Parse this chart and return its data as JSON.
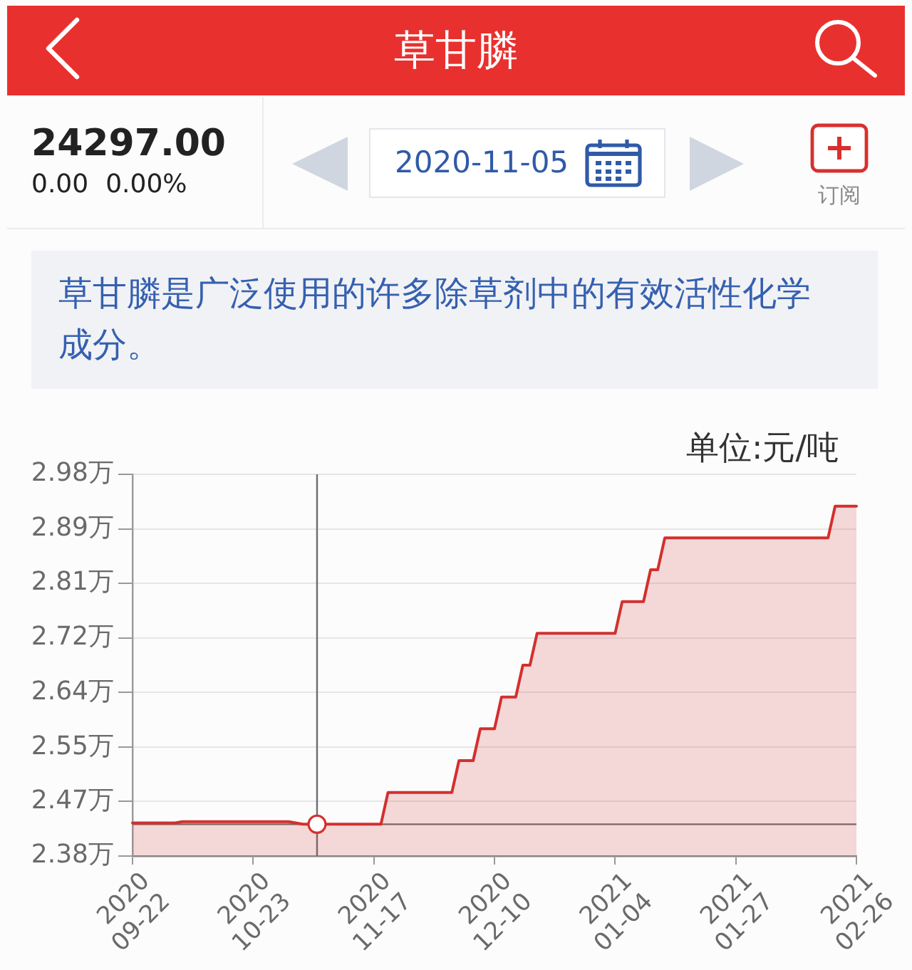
{
  "chart_data": {
    "type": "area",
    "title": "草甘膦",
    "subtitle": "草甘膦是广泛使用的许多除草剂中的有效活性化学成分。",
    "ylabel": "单位:元/吨",
    "annotations": [
      "24297.00",
      "0.00",
      "0.00%",
      "订阅",
      "2020-11-05"
    ],
    "categories": [
      "2020\n09-22",
      null,
      null,
      null,
      null,
      null,
      null,
      null,
      null,
      null,
      null,
      null,
      null,
      null,
      null,
      null,
      null,
      "2020\n10-23",
      null,
      null,
      null,
      null,
      null,
      null,
      null,
      null,
      null,
      null,
      null,
      null,
      null,
      null,
      null,
      null,
      "2020\n11-17",
      null,
      null,
      null,
      null,
      null,
      null,
      null,
      null,
      null,
      null,
      null,
      null,
      null,
      null,
      null,
      null,
      "2020\n12-10",
      null,
      null,
      null,
      null,
      null,
      null,
      null,
      null,
      null,
      null,
      null,
      null,
      null,
      null,
      null,
      null,
      "2021\n01-04",
      null,
      null,
      null,
      null,
      null,
      null,
      null,
      null,
      null,
      null,
      null,
      null,
      null,
      null,
      null,
      null,
      "2021\n01-27",
      null,
      null,
      null,
      null,
      null,
      null,
      null,
      null,
      null,
      null,
      null,
      null,
      null,
      null,
      null,
      null,
      "2021\n02-26"
    ],
    "series": [
      {
        "color": "#d2302e",
        "values": [
          2.432,
          2.432,
          2.432,
          2.432,
          2.432,
          2.432,
          2.432,
          2.434,
          2.434,
          2.434,
          2.434,
          2.434,
          2.434,
          2.434,
          2.434,
          2.434,
          2.434,
          2.434,
          2.434,
          2.434,
          2.434,
          2.434,
          2.434,
          2.432,
          2.43,
          2.43,
          2.43,
          2.43,
          2.43,
          2.43,
          2.43,
          2.43,
          2.43,
          2.43,
          2.43,
          2.43,
          2.48,
          2.48,
          2.48,
          2.48,
          2.48,
          2.48,
          2.48,
          2.48,
          2.48,
          2.48,
          2.53,
          2.53,
          2.53,
          2.58,
          2.58,
          2.58,
          2.63,
          2.63,
          2.63,
          2.68,
          2.68,
          2.73,
          2.73,
          2.73,
          2.73,
          2.73,
          2.73,
          2.73,
          2.73,
          2.73,
          2.73,
          2.73,
          2.73,
          2.78,
          2.78,
          2.78,
          2.78,
          2.83,
          2.83,
          2.88,
          2.88,
          2.88,
          2.88,
          2.88,
          2.88,
          2.88,
          2.88,
          2.88,
          2.88,
          2.88,
          2.88,
          2.88,
          2.88,
          2.88,
          2.88,
          2.88,
          2.88,
          2.88,
          2.88,
          2.88,
          2.88,
          2.88,
          2.88,
          2.93,
          2.93,
          2.93,
          2.93
        ]
      },
      {
        "type": "scatter",
        "color": "#d2302e",
        "marker": "circle",
        "values": [
          null,
          null,
          null,
          null,
          null,
          null,
          null,
          null,
          null,
          null,
          null,
          null,
          null,
          null,
          null,
          null,
          null,
          null,
          null,
          null,
          null,
          null,
          null,
          null,
          null,
          null,
          2.43,
          null,
          null,
          null,
          null,
          null,
          null,
          null,
          null,
          null,
          null,
          null,
          null,
          null,
          null,
          null,
          null,
          null,
          null,
          null,
          null,
          null,
          null,
          null,
          null,
          null,
          null,
          null,
          null,
          null,
          null,
          null,
          null,
          null,
          null,
          null,
          null,
          null,
          null,
          null,
          null,
          null,
          null,
          null,
          null,
          null,
          null,
          null,
          null,
          null,
          null,
          null,
          null,
          null,
          null,
          null,
          null,
          null,
          null,
          null,
          null,
          null,
          null,
          null,
          null,
          null,
          null,
          null,
          null,
          null,
          null,
          null,
          null,
          null,
          null,
          null,
          null
        ]
      }
    ],
    "ylim": [
      2.38,
      2.98
    ],
    "yticks": [
      {
        "value": 2.38,
        "label": "2.38万"
      },
      {
        "value": 2.466,
        "label": "2.47万"
      },
      {
        "value": 2.551,
        "label": "2.55万"
      },
      {
        "value": 2.637,
        "label": "2.64万"
      },
      {
        "value": 2.723,
        "label": "2.72万"
      },
      {
        "value": 2.809,
        "label": "2.81万"
      },
      {
        "value": 2.894,
        "label": "2.89万"
      },
      {
        "value": 2.98,
        "label": "2.98万"
      }
    ],
    "ref_lines": [
      {
        "axis": "y",
        "value": 2.43,
        "color": "#6e6e6e"
      }
    ],
    "grid": "y",
    "legend": false,
    "marker": "none"
  }
}
